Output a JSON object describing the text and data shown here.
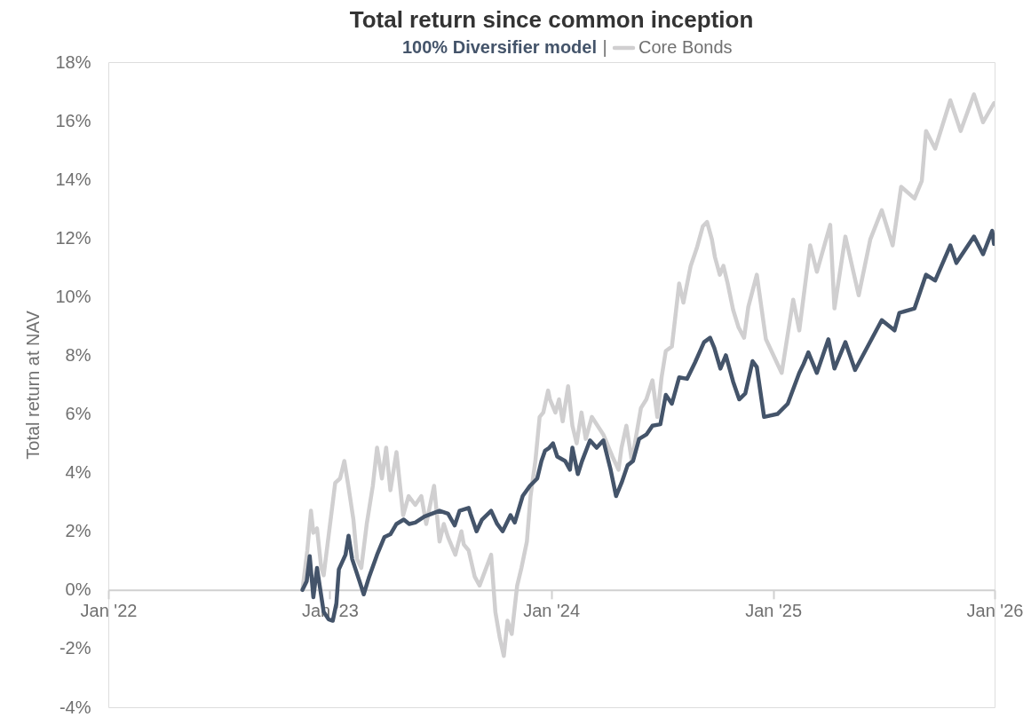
{
  "chart_data": {
    "type": "line",
    "title": "Total return since common inception",
    "subtitle": "|",
    "ylabel": "Total return at NAV",
    "series": [
      {
        "name": "Core Bonds",
        "color": "#d0cfd0",
        "x": [
          "2022-11-17",
          "2022-11-25",
          "2022-12-01",
          "2022-12-05",
          "2022-12-11",
          "2022-12-18",
          "2022-12-22",
          "2023-01-10",
          "2023-01-18",
          "2023-01-25",
          "2023-02-01",
          "2023-02-09",
          "2023-02-15",
          "2023-02-22",
          "2023-03-03",
          "2023-03-13",
          "2023-03-20",
          "2023-03-28",
          "2023-04-04",
          "2023-04-11",
          "2023-04-21",
          "2023-05-02",
          "2023-05-11",
          "2023-05-22",
          "2023-06-01",
          "2023-06-09",
          "2023-06-22",
          "2023-07-01",
          "2023-07-08",
          "2023-07-15",
          "2023-07-27",
          "2023-08-06",
          "2023-08-10",
          "2023-08-18",
          "2023-08-28",
          "2023-09-05",
          "2023-09-24",
          "2023-10-01",
          "2023-10-08",
          "2023-10-15",
          "2023-10-21",
          "2023-10-28",
          "2023-11-06",
          "2023-11-13",
          "2023-11-22",
          "2023-11-28",
          "2023-12-06",
          "2023-12-13",
          "2023-12-19",
          "2023-12-27",
          "2023-12-30",
          "2024-01-08",
          "2024-01-14",
          "2024-01-20",
          "2024-01-29",
          "2024-02-05",
          "2024-02-12",
          "2024-02-20",
          "2024-02-27",
          "2024-03-08",
          "2024-03-27",
          "2024-04-11",
          "2024-04-21",
          "2024-04-26",
          "2024-05-04",
          "2024-05-13",
          "2024-05-28",
          "2024-06-06",
          "2024-06-16",
          "2024-06-24",
          "2024-07-01",
          "2024-07-08",
          "2024-07-18",
          "2024-07-30",
          "2024-08-06",
          "2024-08-18",
          "2024-08-28",
          "2024-09-07",
          "2024-09-14",
          "2024-09-22",
          "2024-09-27",
          "2024-10-05",
          "2024-10-11",
          "2024-10-18",
          "2024-10-27",
          "2024-11-05",
          "2024-11-14",
          "2024-11-21",
          "2024-12-05",
          "2024-12-20",
          "2025-01-15",
          "2025-02-03",
          "2025-02-13",
          "2025-03-03",
          "2025-03-14",
          "2025-04-05",
          "2025-04-12",
          "2025-04-30",
          "2025-05-22",
          "2025-06-10",
          "2025-06-29",
          "2025-07-17",
          "2025-07-31",
          "2025-08-22",
          "2025-09-03",
          "2025-09-10",
          "2025-09-25",
          "2025-10-20",
          "2025-11-06",
          "2025-11-28",
          "2025-12-13",
          "2025-12-31"
        ],
        "values": [
          0.0,
          1.35,
          2.7,
          1.95,
          2.1,
          0.75,
          0.5,
          3.65,
          3.8,
          4.4,
          3.5,
          2.4,
          1.05,
          0.75,
          2.25,
          3.55,
          4.85,
          3.8,
          4.85,
          3.4,
          4.7,
          2.55,
          3.2,
          2.9,
          3.2,
          2.25,
          3.55,
          1.65,
          2.25,
          1.8,
          1.2,
          2.0,
          1.55,
          1.35,
          0.45,
          0.15,
          1.2,
          -0.75,
          -1.6,
          -2.25,
          -1.05,
          -1.5,
          0.15,
          0.75,
          1.65,
          3.2,
          4.4,
          5.9,
          6.05,
          6.8,
          6.5,
          6.05,
          6.5,
          5.75,
          6.95,
          5.6,
          5.0,
          6.05,
          5.15,
          5.9,
          5.3,
          4.55,
          4.1,
          4.85,
          5.6,
          4.4,
          6.2,
          6.5,
          7.15,
          5.9,
          7.25,
          8.15,
          8.3,
          10.45,
          9.8,
          11.05,
          11.65,
          12.4,
          12.55,
          11.95,
          11.35,
          10.75,
          11.05,
          10.45,
          9.55,
          8.95,
          8.6,
          9.65,
          10.75,
          8.55,
          7.4,
          9.9,
          8.85,
          11.75,
          10.85,
          12.45,
          9.6,
          12.05,
          10.05,
          11.95,
          12.95,
          11.75,
          13.75,
          13.35,
          13.95,
          15.65,
          15.05,
          16.7,
          15.65,
          16.9,
          15.95,
          16.6
        ]
      },
      {
        "name": "100% Diversifier model",
        "color": "#44546a",
        "x": [
          "2022-11-17",
          "2022-11-24",
          "2022-11-29",
          "2022-12-05",
          "2022-12-11",
          "2022-12-22",
          "2022-12-30",
          "2023-01-06",
          "2023-01-12",
          "2023-01-16",
          "2023-01-27",
          "2023-02-01",
          "2023-02-07",
          "2023-02-19",
          "2023-02-26",
          "2023-03-07",
          "2023-03-20",
          "2023-04-01",
          "2023-04-11",
          "2023-04-21",
          "2023-05-03",
          "2023-05-12",
          "2023-05-22",
          "2023-06-06",
          "2023-07-01",
          "2023-07-15",
          "2023-07-26",
          "2023-08-03",
          "2023-08-18",
          "2023-08-21",
          "2023-08-31",
          "2023-09-09",
          "2023-09-24",
          "2023-10-04",
          "2023-10-13",
          "2023-10-26",
          "2023-11-02",
          "2023-11-15",
          "2023-11-27",
          "2023-12-09",
          "2023-12-16",
          "2023-12-22",
          "2023-12-29",
          "2024-01-04",
          "2024-01-11",
          "2024-01-24",
          "2024-02-01",
          "2024-02-05",
          "2024-02-14",
          "2024-02-21",
          "2024-03-05",
          "2024-03-16",
          "2024-03-27",
          "2024-04-08",
          "2024-04-17",
          "2024-04-26",
          "2024-05-06",
          "2024-05-15",
          "2024-05-25",
          "2024-06-06",
          "2024-06-16",
          "2024-06-29",
          "2024-07-08",
          "2024-07-18",
          "2024-07-30",
          "2024-08-12",
          "2024-08-25",
          "2024-09-09",
          "2024-09-19",
          "2024-09-26",
          "2024-10-06",
          "2024-10-15",
          "2024-10-27",
          "2024-11-06",
          "2024-11-16",
          "2024-11-28",
          "2024-12-05",
          "2024-12-17",
          "2025-01-08",
          "2025-01-25",
          "2025-02-13",
          "2025-02-20",
          "2025-02-28",
          "2025-03-14",
          "2025-04-02",
          "2025-04-12",
          "2025-04-30",
          "2025-05-16",
          "2025-06-29",
          "2025-07-20",
          "2025-07-28",
          "2025-08-22",
          "2025-09-10",
          "2025-09-25",
          "2025-10-20",
          "2025-10-30",
          "2025-11-28",
          "2025-12-13",
          "2025-12-28",
          "2025-12-31"
        ],
        "values": [
          0.0,
          0.3,
          1.15,
          -0.25,
          0.75,
          -0.75,
          -1.0,
          -1.05,
          -0.45,
          0.7,
          1.2,
          1.85,
          1.05,
          0.3,
          -0.15,
          0.45,
          1.2,
          1.8,
          1.9,
          2.25,
          2.4,
          2.25,
          2.3,
          2.5,
          2.7,
          2.6,
          2.2,
          2.7,
          2.8,
          2.6,
          2.0,
          2.4,
          2.7,
          2.25,
          2.0,
          2.55,
          2.3,
          3.2,
          3.55,
          3.8,
          4.4,
          4.75,
          4.85,
          5.0,
          4.55,
          4.4,
          4.1,
          4.85,
          3.95,
          4.4,
          5.1,
          4.85,
          5.1,
          4.1,
          3.2,
          3.65,
          4.25,
          4.4,
          5.15,
          5.3,
          5.6,
          5.65,
          6.65,
          6.35,
          7.25,
          7.2,
          7.75,
          8.45,
          8.6,
          8.25,
          7.55,
          8.0,
          7.1,
          6.5,
          6.7,
          7.8,
          7.6,
          5.9,
          6.0,
          6.35,
          7.4,
          7.7,
          8.1,
          7.4,
          8.55,
          7.55,
          8.45,
          7.5,
          9.2,
          8.85,
          9.45,
          9.6,
          10.75,
          10.55,
          11.75,
          11.15,
          12.05,
          11.45,
          12.25,
          11.8
        ]
      }
    ],
    "xlim": [
      "2022-01-01",
      "2026-01-01"
    ],
    "xticks": [
      {
        "value": "2022-01-01",
        "label": "Jan '22"
      },
      {
        "value": "2023-01-01",
        "label": "Jan '23"
      },
      {
        "value": "2024-01-01",
        "label": "Jan '24"
      },
      {
        "value": "2025-01-01",
        "label": "Jan '25"
      },
      {
        "value": "2026-01-01",
        "label": "Jan '26"
      }
    ],
    "ylim": [
      -4,
      18
    ],
    "yticks": [
      {
        "value": -4,
        "label": "-4%"
      },
      {
        "value": -2,
        "label": "-2%"
      },
      {
        "value": 0,
        "label": "0%"
      },
      {
        "value": 2,
        "label": "2%"
      },
      {
        "value": 4,
        "label": "4%"
      },
      {
        "value": 6,
        "label": "6%"
      },
      {
        "value": 8,
        "label": "8%"
      },
      {
        "value": 10,
        "label": "10%"
      },
      {
        "value": 12,
        "label": "12%"
      },
      {
        "value": 14,
        "label": "14%"
      },
      {
        "value": 16,
        "label": "16%"
      },
      {
        "value": 18,
        "label": "18%"
      }
    ],
    "grid": false,
    "line_style": "solid",
    "marker": "none"
  }
}
